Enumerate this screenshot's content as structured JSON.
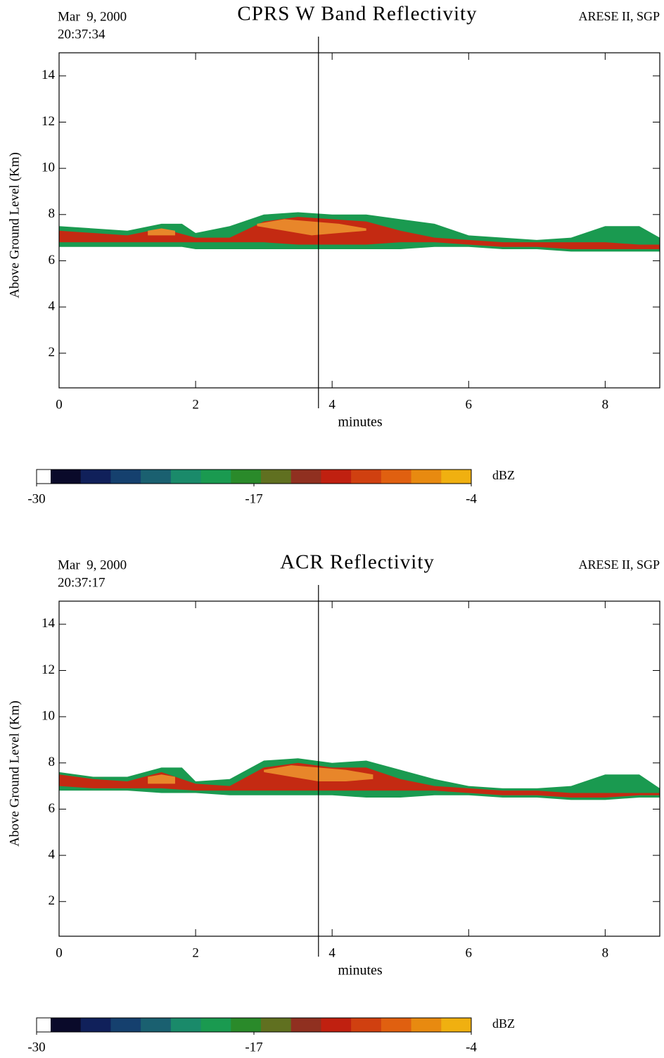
{
  "chart_data": [
    {
      "type": "radar",
      "date": "Mar  9, 2000",
      "time": "20:37:34",
      "title": "CPRS W Band Reflectivity",
      "site": "ARESE II, SGP",
      "xlabel": "minutes",
      "ylabel": "Above Ground Level (Km)",
      "xlim": [
        0,
        8.8
      ],
      "ylim": [
        0.5,
        15
      ],
      "xticks": [
        0,
        2,
        4,
        6,
        8
      ],
      "yticks": [
        2,
        4,
        6,
        8,
        10,
        12,
        14
      ],
      "cursor_x": 3.8,
      "layers": [
        {
          "color": "#1a9a50",
          "x": [
            0,
            0.5,
            1,
            1.5,
            1.8,
            2,
            2.5,
            3,
            3.5,
            4,
            4.5,
            5,
            5.5,
            6,
            6.5,
            7,
            7.5,
            8,
            8.5,
            8.8
          ],
          "bottom": [
            6.6,
            6.6,
            6.6,
            6.6,
            6.6,
            6.5,
            6.5,
            6.5,
            6.5,
            6.5,
            6.5,
            6.5,
            6.6,
            6.6,
            6.5,
            6.5,
            6.4,
            6.4,
            6.4,
            6.4
          ],
          "top": [
            7.5,
            7.4,
            7.3,
            7.6,
            7.6,
            7.2,
            7.5,
            8.0,
            8.1,
            8.0,
            8.0,
            7.8,
            7.6,
            7.1,
            7.0,
            6.9,
            7.0,
            7.5,
            7.5,
            7.0
          ]
        },
        {
          "color": "#c42a12",
          "x": [
            0,
            0.5,
            1,
            1.5,
            2,
            2.5,
            3,
            3.5,
            4,
            4.5,
            5,
            5.5,
            6,
            6.5,
            7,
            7.5,
            8,
            8.5,
            8.8
          ],
          "bottom": [
            6.8,
            6.8,
            6.8,
            6.8,
            6.8,
            6.8,
            6.8,
            6.7,
            6.7,
            6.7,
            6.8,
            6.8,
            6.7,
            6.6,
            6.6,
            6.5,
            6.5,
            6.5,
            6.5
          ],
          "top": [
            7.3,
            7.2,
            7.1,
            7.4,
            7.0,
            7.0,
            7.7,
            7.9,
            7.8,
            7.7,
            7.3,
            7.0,
            6.9,
            6.8,
            6.8,
            6.8,
            6.8,
            6.7,
            6.7
          ]
        },
        {
          "color": "#e8862a",
          "x": [
            2.9,
            3.3,
            3.7,
            4.1,
            4.5
          ],
          "bottom": [
            7.5,
            7.3,
            7.1,
            7.2,
            7.3
          ],
          "top": [
            7.6,
            7.8,
            7.7,
            7.6,
            7.4
          ]
        },
        {
          "color": "#e8862a",
          "x": [
            1.3,
            1.5,
            1.7
          ],
          "bottom": [
            7.1,
            7.1,
            7.1
          ],
          "top": [
            7.3,
            7.4,
            7.3
          ]
        }
      ],
      "colorbar": {
        "label": "dBZ",
        "lim": [
          -30,
          -4
        ],
        "ticks": [
          -30,
          -17,
          -4
        ],
        "colors": [
          "#0a0a2a",
          "#10205a",
          "#15406e",
          "#1a6070",
          "#1a8a6a",
          "#1a9a50",
          "#2a8a2a",
          "#607020",
          "#903020",
          "#c02010",
          "#d04010",
          "#e06010",
          "#e88a10",
          "#f0b010"
        ]
      }
    },
    {
      "type": "radar",
      "date": "Mar  9, 2000",
      "time": "20:37:17",
      "title": "ACR Reflectivity",
      "site": "ARESE II, SGP",
      "xlabel": "minutes",
      "ylabel": "Above Ground Level (Km)",
      "xlim": [
        0,
        8.8
      ],
      "ylim": [
        0.5,
        15
      ],
      "xticks": [
        0,
        2,
        4,
        6,
        8
      ],
      "yticks": [
        2,
        4,
        6,
        8,
        10,
        12,
        14
      ],
      "cursor_x": 3.8,
      "layers": [
        {
          "color": "#1a9a50",
          "x": [
            0,
            0.5,
            1,
            1.5,
            1.8,
            2,
            2.5,
            3,
            3.5,
            4,
            4.5,
            5,
            5.5,
            6,
            6.5,
            7,
            7.5,
            8,
            8.5,
            8.8
          ],
          "bottom": [
            6.8,
            6.8,
            6.8,
            6.7,
            6.7,
            6.7,
            6.6,
            6.6,
            6.6,
            6.6,
            6.5,
            6.5,
            6.6,
            6.6,
            6.5,
            6.5,
            6.4,
            6.4,
            6.5,
            6.5
          ],
          "top": [
            7.6,
            7.4,
            7.4,
            7.8,
            7.8,
            7.2,
            7.3,
            8.1,
            8.2,
            8.0,
            8.1,
            7.7,
            7.3,
            7.0,
            6.9,
            6.9,
            7.0,
            7.5,
            7.5,
            6.9
          ]
        },
        {
          "color": "#c42a12",
          "x": [
            0,
            0.5,
            1,
            1.5,
            2,
            2.5,
            3,
            3.5,
            4,
            4.5,
            5,
            5.5,
            6,
            6.5,
            7,
            7.5,
            8,
            8.5,
            8.8
          ],
          "bottom": [
            7.0,
            6.9,
            6.9,
            6.9,
            6.8,
            6.8,
            6.8,
            6.8,
            6.8,
            6.8,
            6.8,
            6.8,
            6.7,
            6.6,
            6.6,
            6.5,
            6.5,
            6.6,
            6.6
          ],
          "top": [
            7.5,
            7.3,
            7.2,
            7.6,
            7.1,
            7.0,
            7.8,
            8.0,
            7.8,
            7.8,
            7.3,
            7.0,
            6.9,
            6.8,
            6.8,
            6.7,
            6.7,
            6.7,
            6.7
          ]
        },
        {
          "color": "#e8862a",
          "x": [
            3.0,
            3.4,
            3.8,
            4.2,
            4.6
          ],
          "bottom": [
            7.6,
            7.4,
            7.2,
            7.2,
            7.3
          ],
          "top": [
            7.7,
            7.9,
            7.8,
            7.7,
            7.5
          ]
        },
        {
          "color": "#e8862a",
          "x": [
            1.3,
            1.5,
            1.7
          ],
          "bottom": [
            7.1,
            7.1,
            7.1
          ],
          "top": [
            7.4,
            7.5,
            7.4
          ]
        }
      ],
      "colorbar": {
        "label": "dBZ",
        "lim": [
          -30,
          -4
        ],
        "ticks": [
          -30,
          -17,
          -4
        ],
        "colors": [
          "#0a0a2a",
          "#10205a",
          "#15406e",
          "#1a6070",
          "#1a8a6a",
          "#1a9a50",
          "#2a8a2a",
          "#607020",
          "#903020",
          "#c02010",
          "#d04010",
          "#e06010",
          "#e88a10",
          "#f0b010"
        ]
      }
    }
  ]
}
